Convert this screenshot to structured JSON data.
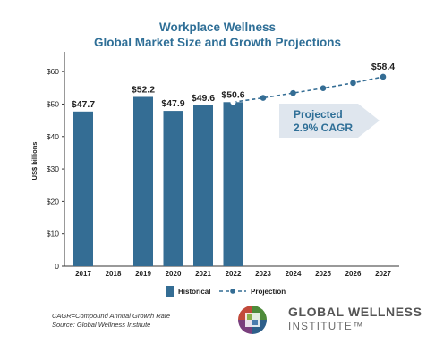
{
  "title_line1": "Workplace Wellness",
  "title_line2": "Global Market Size and Growth Projections",
  "footnote_line1": "CAGR=Compound Annual Growth Rate",
  "footnote_line2": "Source: Global Wellness Institute",
  "logo": {
    "line1": "GLOBAL WELLNESS",
    "line2": "INSTITUTE™"
  },
  "colors": {
    "bar": "#346d94",
    "arrow": "#dfe6ee",
    "axis": "#333333",
    "title": "#2f6f97"
  },
  "chart_data": {
    "type": "bar",
    "categories": [
      "2017",
      "2018",
      "2019",
      "2020",
      "2021",
      "2022",
      "2023",
      "2024",
      "2025",
      "2026",
      "2027"
    ],
    "series": [
      {
        "name": "Historical",
        "type": "bar",
        "values": [
          47.7,
          null,
          52.2,
          47.9,
          49.6,
          50.6,
          null,
          null,
          null,
          null,
          null
        ],
        "labels": [
          "$47.7",
          "",
          "$52.2",
          "$47.9",
          "$49.6",
          "$50.6",
          "",
          "",
          "",
          "",
          ""
        ]
      },
      {
        "name": "Projection",
        "type": "line",
        "values": [
          null,
          null,
          null,
          null,
          null,
          50.6,
          51.9,
          53.4,
          54.9,
          56.5,
          58.4
        ],
        "end_label": "$58.4"
      }
    ],
    "ylabel": "US$ billions",
    "yticks": [
      "0",
      "$10",
      "$20",
      "$30",
      "$40",
      "$50",
      "$60"
    ],
    "ylim": [
      0,
      65
    ],
    "legend_position": "bottom",
    "annotation": {
      "line1": "Projected",
      "line2": "2.9% CAGR"
    }
  }
}
